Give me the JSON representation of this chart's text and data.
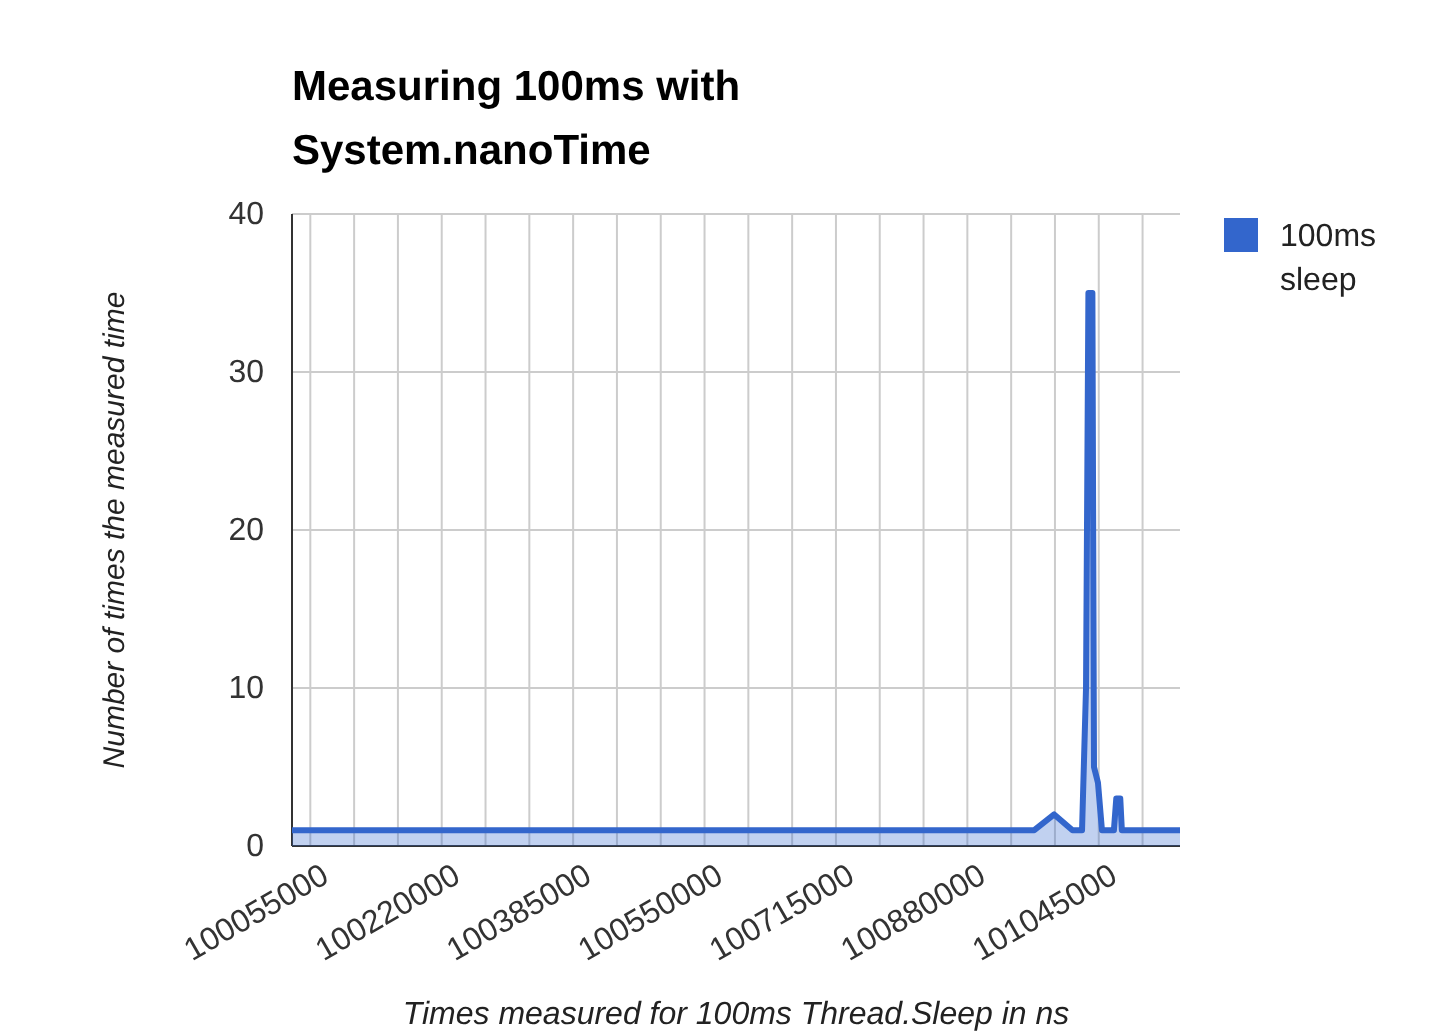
{
  "chart_data": {
    "type": "area",
    "title": "Measuring 100ms with System.nanoTime",
    "xlabel": "Times measured for 100ms Thread.Sleep in ns",
    "ylabel": "Number of times the measured time",
    "xlim": [
      100032000,
      101147000
    ],
    "xticks": [
      100055000,
      {
        "value": 100110000,
        "label": null
      },
      {
        "value": 100165000,
        "label": null
      },
      100220000,
      {
        "value": 100275000,
        "label": null
      },
      {
        "value": 100330000,
        "label": null
      },
      100385000,
      {
        "value": 100440000,
        "label": null
      },
      {
        "value": 100495000,
        "label": null
      },
      100550000,
      {
        "value": 100605000,
        "label": null
      },
      {
        "value": 100660000,
        "label": null
      },
      100715000,
      {
        "value": 100770000,
        "label": null
      },
      {
        "value": 100825000,
        "label": null
      },
      100880000,
      {
        "value": 100935000,
        "label": null
      },
      {
        "value": 100990000,
        "label": null
      },
      101045000,
      {
        "value": 101100000,
        "label": null
      }
    ],
    "ylim": [
      0,
      40
    ],
    "yticks": [
      0,
      10,
      20,
      30,
      40
    ],
    "grid": true,
    "legend": "top right",
    "series": [
      {
        "name": "100ms sleep",
        "color": "#3366cc",
        "x": [
          100032000,
          100964000,
          100989000,
          101012000,
          101024000,
          101029000,
          101032000,
          101037000,
          101039000,
          101044000,
          101049000,
          101064000,
          101067000,
          101072000,
          101074000,
          101147000
        ],
        "values": [
          1,
          1,
          2,
          1,
          1,
          10,
          35,
          35,
          5,
          4,
          1,
          1,
          3,
          3,
          1,
          1
        ]
      }
    ]
  }
}
